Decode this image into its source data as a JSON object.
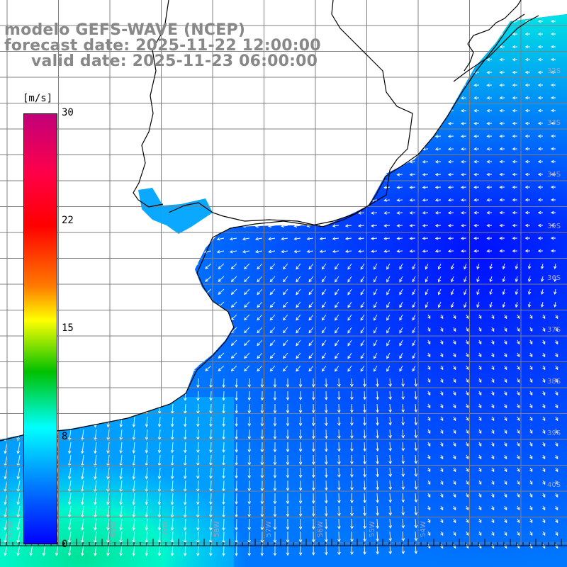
{
  "titles": {
    "line1": "modelo GEFS-WAVE (NCEP)",
    "line2": "forecast date: 2025-11-22 12:00:00",
    "line3": "valid date: 2025-11-23 06:00:00"
  },
  "colorbar": {
    "unit": "[m/s]",
    "ticks": [
      "30",
      "22",
      "15",
      "8",
      "0"
    ],
    "tick_values": [
      30,
      22,
      15,
      8,
      0
    ],
    "range": [
      0,
      30
    ],
    "colors": [
      "#0000ff",
      "#0080ff",
      "#00ffff",
      "#00c000",
      "#ffff00",
      "#ff7a00",
      "#ff0000",
      "#ff0048",
      "#c2007a"
    ]
  },
  "lat_labels": [
    "32S",
    "33S",
    "34S",
    "35S",
    "36S",
    "37S",
    "38S",
    "39S",
    "40S"
  ],
  "lon_labels": [
    "61W",
    "60W",
    "59W",
    "58W",
    "57W",
    "56W",
    "55W",
    "54W"
  ],
  "colors": {
    "land": "#ffffff",
    "coast": "#000000",
    "grid": "#808080",
    "title": "#888888"
  }
}
